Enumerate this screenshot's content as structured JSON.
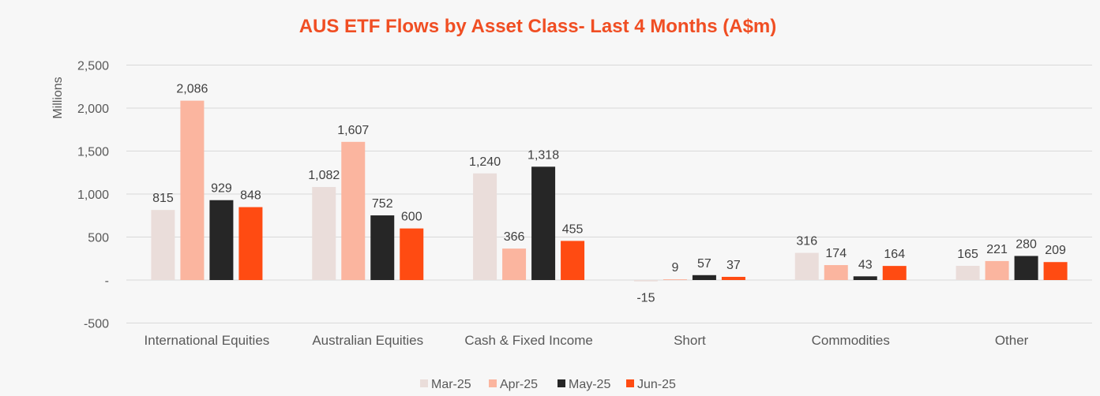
{
  "colors": {
    "title": "#f04e23",
    "grid": "#d9d9d9",
    "axis_text": "#595959",
    "label_text": "#404040",
    "background": "#f7f7f7"
  },
  "chart_data": {
    "type": "bar",
    "title": "AUS ETF Flows by Asset Class- Last 4 Months (A$m)",
    "xlabel": "",
    "ylabel": "Millions",
    "ylim": [
      -500,
      2500
    ],
    "yticks": [
      {
        "value": -500,
        "label": "-500"
      },
      {
        "value": 0,
        "label": "-"
      },
      {
        "value": 500,
        "label": "500"
      },
      {
        "value": 1000,
        "label": "1,000"
      },
      {
        "value": 1500,
        "label": "1,500"
      },
      {
        "value": 2000,
        "label": "2,000"
      },
      {
        "value": 2500,
        "label": "2,500"
      }
    ],
    "grid": true,
    "legend": "bottom",
    "categories": [
      "International Equities",
      "Australian Equities",
      "Cash & Fixed Income",
      "Short",
      "Commodities",
      "Other"
    ],
    "series": [
      {
        "name": "Mar-25",
        "color": "#eaddda",
        "values": [
          815,
          1082,
          1240,
          -15,
          316,
          165
        ],
        "labels": [
          "815",
          "1,082",
          "1,240",
          "-15",
          "316",
          "165"
        ]
      },
      {
        "name": "Apr-25",
        "color": "#fbb59f",
        "values": [
          2086,
          1607,
          366,
          9,
          174,
          221
        ],
        "labels": [
          "2,086",
          "1,607",
          "366",
          "9",
          "174",
          "221"
        ]
      },
      {
        "name": "May-25",
        "color": "#262626",
        "values": [
          929,
          752,
          1318,
          57,
          43,
          280
        ],
        "labels": [
          "929",
          "752",
          "1,318",
          "57",
          "43",
          "280"
        ]
      },
      {
        "name": "Jun-25",
        "color": "#ff4b12",
        "values": [
          848,
          600,
          455,
          37,
          164,
          209
        ],
        "labels": [
          "848",
          "600",
          "455",
          "37",
          "164",
          "209"
        ]
      }
    ]
  }
}
